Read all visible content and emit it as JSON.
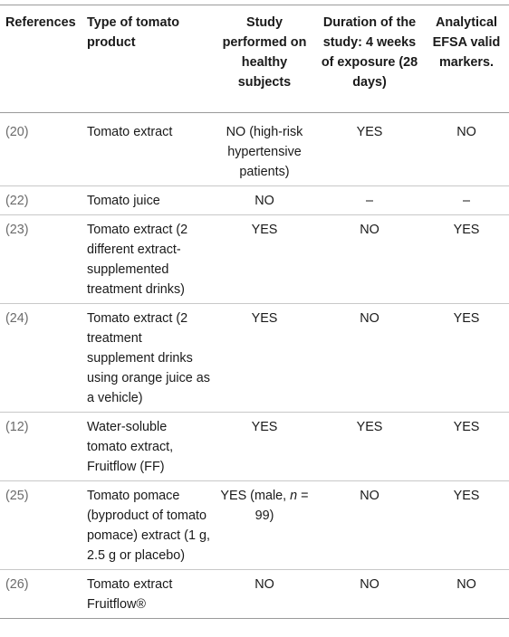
{
  "table": {
    "headers": [
      "References",
      "Type of tomato product",
      "Study performed on healthy subjects",
      "Duration of the study: 4 weeks of exposure (28 days)",
      "Analytical EFSA valid markers."
    ],
    "rows": [
      {
        "ref": "(20)",
        "product": "Tomato extract",
        "healthy": "NO (high-risk hypertensive patients)",
        "duration": "YES",
        "markers": "NO"
      },
      {
        "ref": "(22)",
        "product": "Tomato juice",
        "healthy": "NO",
        "duration": "–",
        "markers": "–"
      },
      {
        "ref": "(23)",
        "product": "Tomato extract (2 different extract-supplemented treatment drinks)",
        "healthy": "YES",
        "duration": "NO",
        "markers": "YES"
      },
      {
        "ref": "(24)",
        "product": "Tomato extract (2 treatment supplement drinks using orange juice as a vehicle)",
        "healthy": "YES",
        "duration": "NO",
        "markers": "YES"
      },
      {
        "ref": "(12)",
        "product": "Water-soluble tomato extract, Fruitflow (FF)",
        "healthy": "YES",
        "duration": "YES",
        "markers": "YES"
      },
      {
        "ref": "(25)",
        "product": "Tomato pomace (byproduct of tomato pomace) extract (1 g, 2.5 g or placebo)",
        "healthy_prefix": "YES (male, ",
        "healthy_italic": "n",
        "healthy_suffix": " = 99)",
        "duration": "NO",
        "markers": "YES"
      },
      {
        "ref": "(26)",
        "product": "Tomato extract Fruitflow®",
        "healthy": "NO",
        "duration": "NO",
        "markers": "NO"
      }
    ]
  }
}
